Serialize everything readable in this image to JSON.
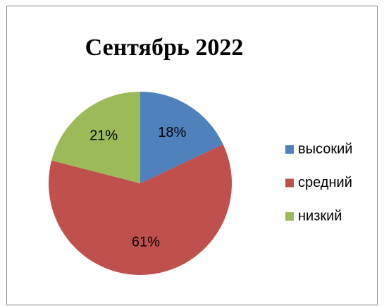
{
  "chart_data": {
    "type": "pie",
    "title": "Сентябрь 2022",
    "categories": [
      "высокий",
      "средний",
      "низкий"
    ],
    "values": [
      18,
      61,
      21
    ],
    "value_labels": [
      "18%",
      "61%",
      "21%"
    ],
    "colors": [
      "#4f81bd",
      "#c0504d",
      "#9bbb59"
    ],
    "legend": "right"
  }
}
